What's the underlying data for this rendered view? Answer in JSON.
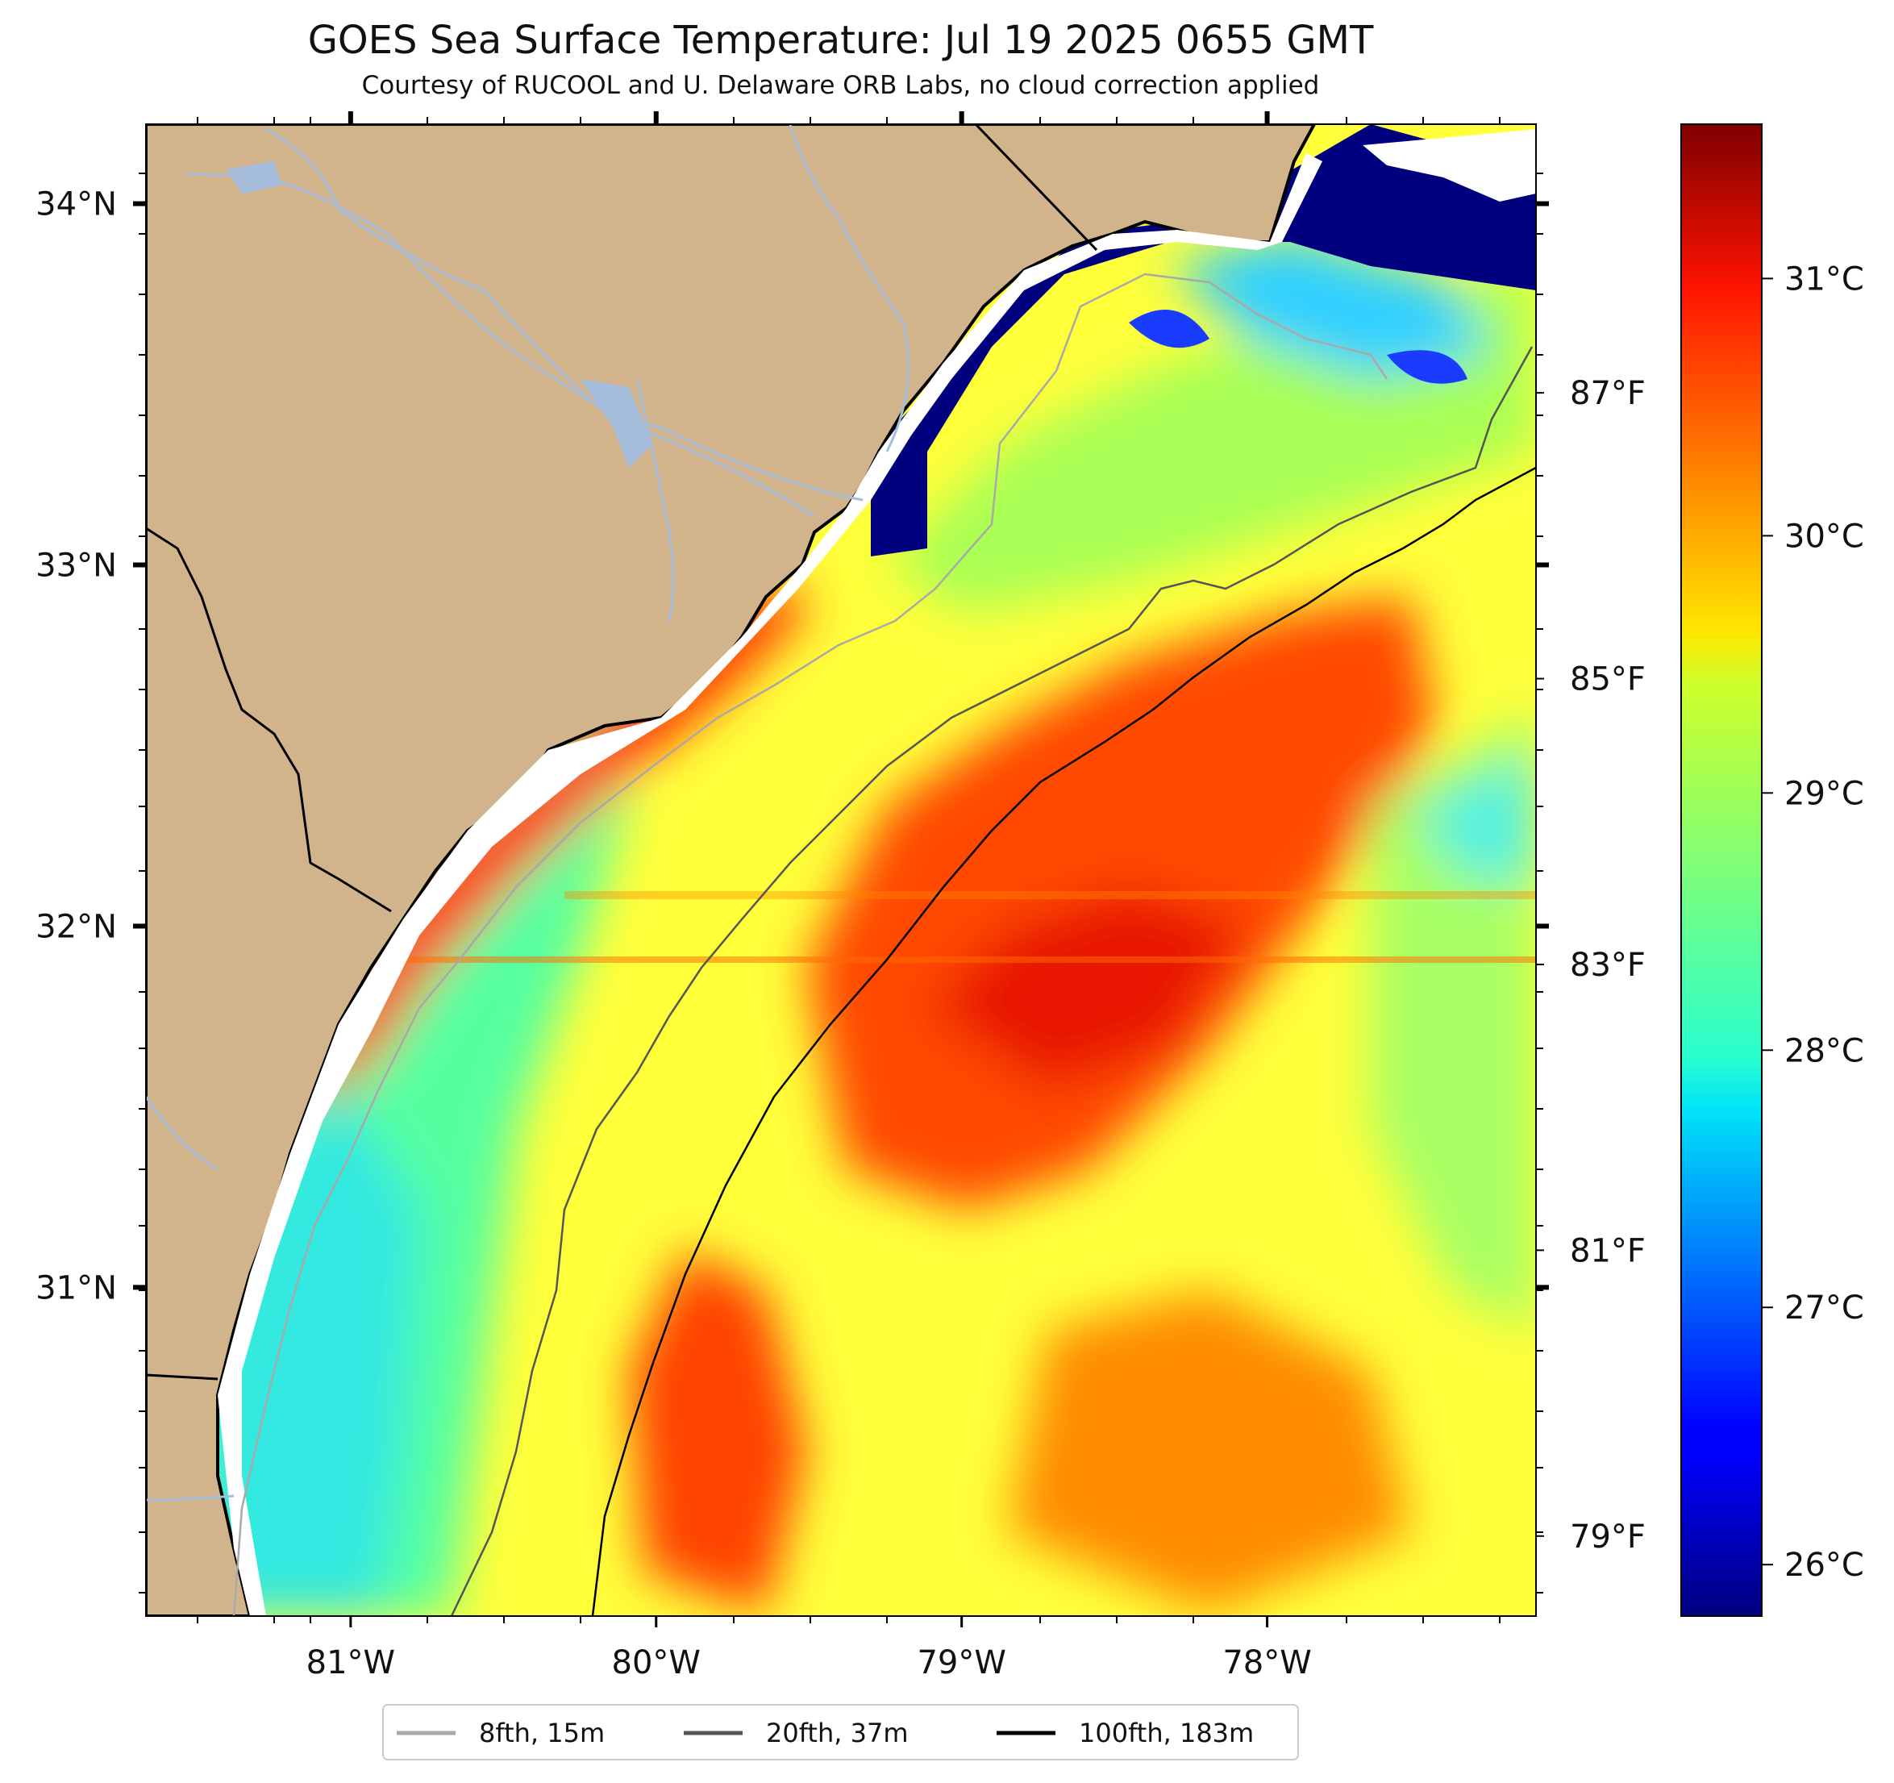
{
  "title": "GOES Sea Surface Temperature: Jul 19 2025 0655 GMT",
  "subtitle": "Courtesy of RUCOOL and U. Delaware ORB Labs, no cloud correction applied",
  "map": {
    "lon_range": [
      -81.67,
      -77.12
    ],
    "lat_range": [
      30.09,
      34.22
    ],
    "lon_ticks": [
      {
        "value": -81,
        "label": "81°W"
      },
      {
        "value": -80,
        "label": "80°W"
      },
      {
        "value": -79,
        "label": "79°W"
      },
      {
        "value": -78,
        "label": "78°W"
      }
    ],
    "lat_ticks": [
      {
        "value": 34,
        "label": "34°N"
      },
      {
        "value": 33,
        "label": "33°N"
      },
      {
        "value": 32,
        "label": "32°N"
      },
      {
        "value": 31,
        "label": "31°N"
      }
    ],
    "colors": {
      "land": "#d2b48c",
      "river": "#a6bddb",
      "no_data": "#ffffff"
    }
  },
  "colorbar": {
    "colormap": "jet",
    "celsius_range": [
      25.8,
      31.6
    ],
    "celsius_ticks": [
      {
        "value": 31,
        "label": "31°C"
      },
      {
        "value": 30,
        "label": "30°C"
      },
      {
        "value": 29,
        "label": "29°C"
      },
      {
        "value": 28,
        "label": "28°C"
      },
      {
        "value": 27,
        "label": "27°C"
      },
      {
        "value": 26,
        "label": "26°C"
      }
    ],
    "fahrenheit_ticks": [
      {
        "value": 87,
        "label": "87°F"
      },
      {
        "value": 85,
        "label": "85°F"
      },
      {
        "value": 83,
        "label": "83°F"
      },
      {
        "value": 81,
        "label": "81°F"
      },
      {
        "value": 79,
        "label": "79°F"
      }
    ]
  },
  "legend": {
    "items": [
      {
        "label": "8fth, 15m",
        "color": "#a9a9a9"
      },
      {
        "label": "20fth, 37m",
        "color": "#555555"
      },
      {
        "label": "100fth, 183m",
        "color": "#000000"
      }
    ]
  }
}
